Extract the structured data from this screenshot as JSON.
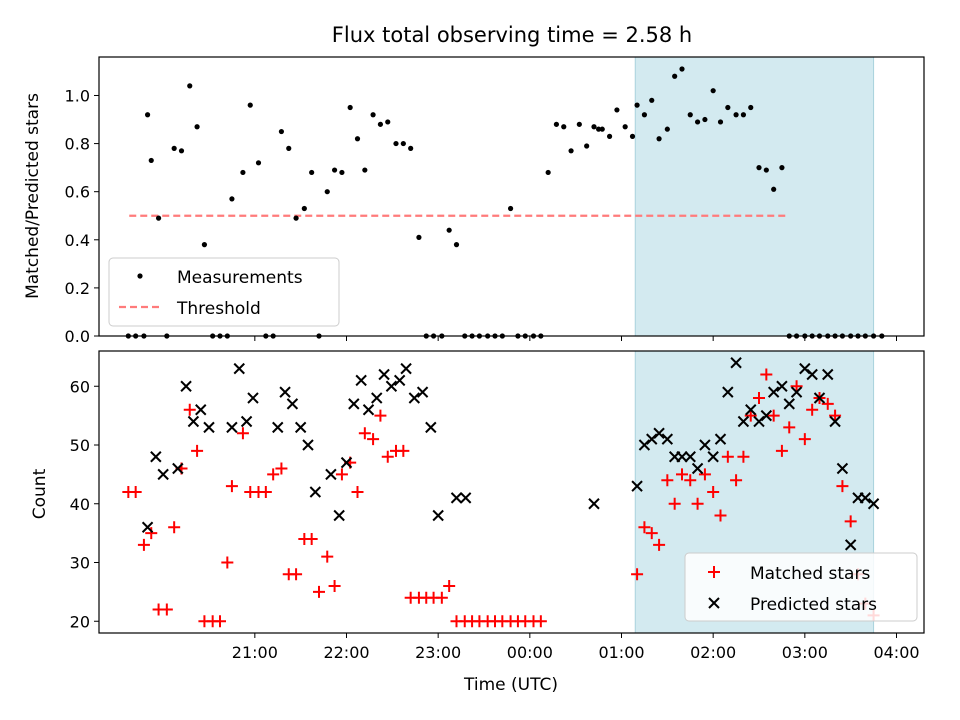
{
  "chart_data": {
    "title": "Flux total observing time = 2.58 h",
    "xlabel": "Time (UTC)",
    "x_ticks": [
      "21:00",
      "22:00",
      "23:00",
      "00:00",
      "01:00",
      "02:00",
      "03:00",
      "04:00"
    ],
    "x_range_hours": [
      19.3,
      28.3
    ],
    "shaded_interval_hours": [
      25.15,
      27.75
    ],
    "shade_color": "#d3eaf0",
    "panels": [
      {
        "type": "scatter",
        "ylabel": "Matched/Predicted stars",
        "ylim": [
          0,
          1.16
        ],
        "y_ticks": [
          0.0,
          0.2,
          0.4,
          0.6,
          0.8,
          1.0
        ],
        "legend": [
          "Measurements",
          "Threshold"
        ],
        "legend_position": "lower-left",
        "threshold": {
          "name": "Threshold",
          "value": 0.5,
          "x_start": 19.63,
          "x_end": 26.82,
          "color": "#ff7b7b"
        },
        "series": [
          {
            "name": "Measurements",
            "color": "#000000",
            "x": [
              19.62,
              19.7,
              19.79,
              19.83,
              19.87,
              19.95,
              20.04,
              20.12,
              20.2,
              20.29,
              20.37,
              20.45,
              20.54,
              20.62,
              20.7,
              20.75,
              20.87,
              20.95,
              21.04,
              21.12,
              21.2,
              21.29,
              21.37,
              21.45,
              21.54,
              21.62,
              21.7,
              21.79,
              21.87,
              21.95,
              22.04,
              22.12,
              22.2,
              22.29,
              22.37,
              22.45,
              22.54,
              22.62,
              22.7,
              22.79,
              22.87,
              22.95,
              23.04,
              23.12,
              23.2,
              23.29,
              23.37,
              23.45,
              23.54,
              23.62,
              23.7,
              23.79,
              23.87,
              23.95,
              24.04,
              24.12,
              24.2,
              24.29,
              24.37,
              24.45,
              24.54,
              24.62,
              24.7,
              24.75,
              24.79,
              24.87,
              24.95,
              25.04,
              25.12,
              25.17,
              25.25,
              25.33,
              25.41,
              25.5,
              25.58,
              25.66,
              25.75,
              25.83,
              25.91,
              26.0,
              26.08,
              26.16,
              26.25,
              26.33,
              26.41,
              26.5,
              26.58,
              26.66,
              26.75,
              26.83,
              26.91,
              27.0,
              27.08,
              27.16,
              27.25,
              27.33,
              27.41,
              27.5,
              27.58,
              27.66,
              27.75,
              27.84
            ],
            "y": [
              0.0,
              0.0,
              0.0,
              0.92,
              0.73,
              0.49,
              0.0,
              0.78,
              0.77,
              1.04,
              0.87,
              0.38,
              0.0,
              0.0,
              0.0,
              0.57,
              0.68,
              0.96,
              0.72,
              0.0,
              0.0,
              0.85,
              0.78,
              0.49,
              0.53,
              0.68,
              0.0,
              0.6,
              0.69,
              0.68,
              0.95,
              0.82,
              0.69,
              0.92,
              0.88,
              0.89,
              0.8,
              0.8,
              0.78,
              0.41,
              0.0,
              0.0,
              0.0,
              0.44,
              0.38,
              0.0,
              0.0,
              0.0,
              0.0,
              0.0,
              0.0,
              0.53,
              0.0,
              0.0,
              0.0,
              0.0,
              0.68,
              0.88,
              0.87,
              0.77,
              0.88,
              0.79,
              0.87,
              0.86,
              0.86,
              0.83,
              0.94,
              0.87,
              0.83,
              0.96,
              0.92,
              0.98,
              0.82,
              0.86,
              1.08,
              1.11,
              0.92,
              0.89,
              0.9,
              1.02,
              0.89,
              0.95,
              0.92,
              0.92,
              0.95,
              0.7,
              0.69,
              0.61,
              0.7,
              0.0,
              0.0,
              0.0,
              0.0,
              0.0,
              0.0,
              0.0,
              0.0,
              0.0,
              0.0,
              0.0,
              0.0,
              0.0
            ]
          }
        ]
      },
      {
        "type": "scatter",
        "ylabel": "Count",
        "ylim": [
          18,
          66
        ],
        "y_ticks": [
          20,
          30,
          40,
          50,
          60
        ],
        "legend": [
          "Matched stars",
          "Predicted stars"
        ],
        "legend_position": "lower-right",
        "series": [
          {
            "name": "Matched stars",
            "marker": "plus",
            "color": "#ff0000",
            "x": [
              19.62,
              19.7,
              19.79,
              19.87,
              19.95,
              20.04,
              20.12,
              20.2,
              20.29,
              20.37,
              20.45,
              20.54,
              20.62,
              20.7,
              20.75,
              20.87,
              20.95,
              21.04,
              21.12,
              21.2,
              21.29,
              21.37,
              21.45,
              21.54,
              21.62,
              21.7,
              21.79,
              21.87,
              21.95,
              22.04,
              22.12,
              22.2,
              22.29,
              22.37,
              22.45,
              22.54,
              22.62,
              22.7,
              22.79,
              22.87,
              22.95,
              23.04,
              23.12,
              23.2,
              23.29,
              23.37,
              23.45,
              23.54,
              23.62,
              23.7,
              23.79,
              23.87,
              23.95,
              24.04,
              24.12,
              25.17,
              25.25,
              25.33,
              25.41,
              25.5,
              25.58,
              25.66,
              25.75,
              25.83,
              25.91,
              26.0,
              26.08,
              26.16,
              26.25,
              26.33,
              26.41,
              26.5,
              26.58,
              26.66,
              26.75,
              26.83,
              26.91,
              27.0,
              27.08,
              27.16,
              27.25,
              27.33,
              27.41,
              27.5,
              27.58,
              27.66,
              27.75
            ],
            "y": [
              42,
              42,
              33,
              35,
              22,
              22,
              36,
              46,
              56,
              49,
              20,
              20,
              20,
              30,
              43,
              52,
              42,
              42,
              42,
              45,
              46,
              28,
              28,
              34,
              34,
              25,
              31,
              26,
              45,
              47,
              42,
              52,
              51,
              55,
              48,
              49,
              49,
              24,
              24,
              24,
              24,
              24,
              26,
              20,
              20,
              20,
              20,
              20,
              20,
              20,
              20,
              20,
              20,
              20,
              20,
              28,
              36,
              35,
              33,
              44,
              40,
              45,
              44,
              40,
              45,
              42,
              38,
              48,
              44,
              48,
              55,
              58,
              62,
              55,
              49,
              53,
              60,
              51,
              56,
              58,
              57,
              55,
              43,
              37,
              28,
              23,
              21
            ]
          },
          {
            "name": "Predicted stars",
            "marker": "x",
            "color": "#000000",
            "x": [
              19.83,
              19.92,
              20.0,
              20.16,
              20.25,
              20.33,
              20.41,
              20.5,
              20.75,
              20.83,
              20.91,
              20.98,
              21.25,
              21.33,
              21.41,
              21.5,
              21.58,
              21.66,
              21.83,
              21.92,
              22.0,
              22.08,
              22.16,
              22.24,
              22.33,
              22.41,
              22.49,
              22.58,
              22.65,
              22.74,
              22.83,
              22.92,
              23.0,
              23.2,
              23.3,
              24.7,
              25.17,
              25.25,
              25.33,
              25.41,
              25.5,
              25.58,
              25.66,
              25.75,
              25.83,
              25.91,
              26.0,
              26.08,
              26.16,
              26.25,
              26.33,
              26.41,
              26.5,
              26.58,
              26.66,
              26.75,
              26.83,
              26.91,
              27.0,
              27.08,
              27.16,
              27.25,
              27.33,
              27.41,
              27.5,
              27.58,
              27.66,
              27.75
            ],
            "y": [
              36,
              48,
              45,
              46,
              60,
              54,
              56,
              53,
              53,
              63,
              54,
              58,
              53,
              59,
              57,
              53,
              50,
              42,
              45,
              38,
              47,
              57,
              61,
              56,
              58,
              62,
              60,
              61,
              63,
              58,
              59,
              53,
              38,
              41,
              41,
              40,
              43,
              50,
              51,
              52,
              51,
              48,
              48,
              48,
              46,
              50,
              48,
              51,
              59,
              64,
              54,
              56,
              54,
              55,
              59,
              60,
              57,
              59,
              63,
              62,
              58,
              62,
              54,
              46,
              33,
              41,
              41,
              40
            ]
          }
        ]
      }
    ]
  }
}
